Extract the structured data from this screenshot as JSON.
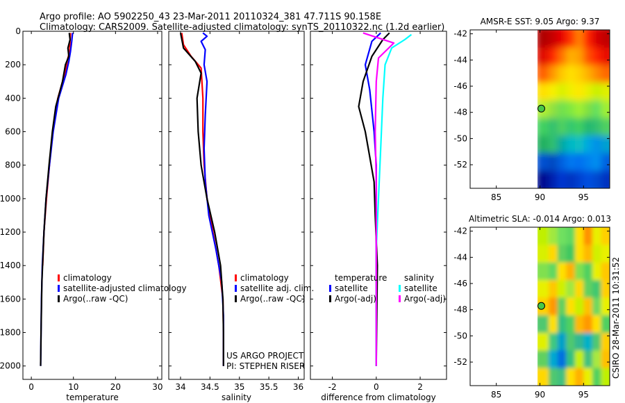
{
  "title_line1": "Argo profile: AO 5902250_43 23-Mar-2011 20110324_381 47.711S 90.158E",
  "title_line2": "Climatology: CARS2009. Satellite-adjusted climatology: synTS_20110322.nc (1.2d earlier)",
  "side_stamp": "CSIRO 28-Mar-2011 10:31:52",
  "colors": {
    "climatology": "#ff0000",
    "satellite": "#0000ff",
    "argo": "#000000",
    "sat_sal": "#00ffff",
    "argo_sal": "#ff00ff"
  },
  "chart_data": [
    {
      "type": "line",
      "id": "temperature-panel",
      "xlabel": "temperature",
      "xlim": [
        -2,
        31
      ],
      "ylim": [
        2080,
        0
      ],
      "xticks": [
        "0",
        "10",
        "20",
        "30"
      ],
      "yticks": [
        "0",
        "200",
        "400",
        "600",
        "800",
        "1000",
        "1200",
        "1400",
        "1600",
        "1800",
        "2000"
      ],
      "legend": [
        "climatology",
        "satellite-adjusted climatology",
        "Argo(..raw -QC)"
      ],
      "series": [
        {
          "name": "climatology",
          "color": "#ff0000",
          "points": [
            [
              9.3,
              10
            ],
            [
              9.2,
              60
            ],
            [
              9.1,
              120
            ],
            [
              8.6,
              170
            ],
            [
              8.0,
              250
            ],
            [
              6.3,
              400
            ],
            [
              5.1,
              600
            ],
            [
              4.3,
              800
            ],
            [
              3.6,
              1000
            ],
            [
              3.0,
              1200
            ],
            [
              2.7,
              1400
            ]
          ]
        },
        {
          "name": "satellite-adjusted climatology",
          "color": "#0000ff",
          "points": [
            [
              9.8,
              10
            ],
            [
              9.6,
              60
            ],
            [
              9.3,
              120
            ],
            [
              8.9,
              180
            ],
            [
              8.2,
              260
            ],
            [
              6.5,
              400
            ],
            [
              5.2,
              600
            ],
            [
              4.3,
              800
            ],
            [
              3.5,
              1000
            ],
            [
              3.0,
              1200
            ],
            [
              2.6,
              1400
            ],
            [
              2.4,
              1600
            ],
            [
              2.3,
              1800
            ],
            [
              2.2,
              2000
            ]
          ]
        },
        {
          "name": "Argo(..raw -QC)",
          "color": "#000000",
          "points": [
            [
              9.0,
              10
            ],
            [
              9.2,
              50
            ],
            [
              8.7,
              100
            ],
            [
              8.9,
              150
            ],
            [
              8.1,
              200
            ],
            [
              7.4,
              300
            ],
            [
              5.8,
              450
            ],
            [
              5.0,
              600
            ],
            [
              4.2,
              800
            ],
            [
              3.5,
              1000
            ],
            [
              3.0,
              1200
            ],
            [
              2.5,
              1500
            ],
            [
              2.3,
              1800
            ],
            [
              2.2,
              2000
            ]
          ]
        }
      ]
    },
    {
      "type": "line",
      "id": "salinity-panel",
      "xlabel": "salinity",
      "xlim": [
        33.8,
        36.1
      ],
      "ylim": [
        2080,
        0
      ],
      "xticks": [
        "34",
        "34.5",
        "35",
        "35.5",
        "36"
      ],
      "legend": [
        "climatology",
        "satellite adj. clim.",
        "Argo(..raw -QC)"
      ],
      "annotations": [
        "US ARGO PROJECT",
        "PI: STEPHEN RISER"
      ],
      "series": [
        {
          "name": "climatology",
          "color": "#ff0000",
          "points": [
            [
              34.02,
              10
            ],
            [
              34.05,
              80
            ],
            [
              34.18,
              150
            ],
            [
              34.35,
              220
            ],
            [
              34.38,
              400
            ],
            [
              34.38,
              600
            ],
            [
              34.4,
              800
            ],
            [
              34.45,
              1000
            ],
            [
              34.55,
              1200
            ],
            [
              34.65,
              1400
            ],
            [
              34.72,
              1600
            ],
            [
              34.73,
              1800
            ],
            [
              34.73,
              2000
            ]
          ]
        },
        {
          "name": "satellite adj. clim.",
          "color": "#0000ff",
          "points": [
            [
              34.38,
              10
            ],
            [
              34.45,
              30
            ],
            [
              34.35,
              60
            ],
            [
              34.42,
              110
            ],
            [
              34.4,
              200
            ],
            [
              34.45,
              300
            ],
            [
              34.42,
              500
            ],
            [
              34.4,
              700
            ],
            [
              34.42,
              900
            ],
            [
              34.48,
              1100
            ],
            [
              34.6,
              1300
            ],
            [
              34.7,
              1500
            ],
            [
              34.73,
              1700
            ],
            [
              34.73,
              2000
            ]
          ]
        },
        {
          "name": "Argo(..raw -QC)",
          "color": "#000000",
          "points": [
            [
              34.0,
              10
            ],
            [
              34.05,
              100
            ],
            [
              34.25,
              180
            ],
            [
              34.35,
              250
            ],
            [
              34.28,
              400
            ],
            [
              34.3,
              600
            ],
            [
              34.35,
              800
            ],
            [
              34.45,
              1000
            ],
            [
              34.58,
              1200
            ],
            [
              34.68,
              1400
            ],
            [
              34.72,
              1600
            ],
            [
              34.73,
              1800
            ],
            [
              34.73,
              2000
            ]
          ]
        }
      ]
    },
    {
      "type": "line",
      "id": "difference-panel",
      "xlabel": "difference from climatology",
      "xlim": [
        -3,
        3.2
      ],
      "ylim": [
        2080,
        0
      ],
      "xticks": [
        "-2",
        "0",
        "2"
      ],
      "legend_groups": [
        {
          "heading": "temperature",
          "items": [
            "satellite",
            "Argo(-adj)"
          ]
        },
        {
          "heading": "salinity",
          "items": [
            "satellite",
            "Argo(-adj)"
          ]
        }
      ],
      "series": [
        {
          "name": "temperature satellite",
          "color": "#0000ff",
          "points": [
            [
              0.2,
              10
            ],
            [
              -0.2,
              60
            ],
            [
              -0.5,
              200
            ],
            [
              -0.3,
              350
            ],
            [
              -0.1,
              600
            ],
            [
              0.0,
              800
            ],
            [
              0.0,
              1000
            ],
            [
              0.0,
              1500
            ],
            [
              0.0,
              2000
            ]
          ]
        },
        {
          "name": "temperature Argo(-adj)",
          "color": "#000000",
          "points": [
            [
              0.6,
              10
            ],
            [
              0.3,
              50
            ],
            [
              -0.2,
              150
            ],
            [
              -0.6,
              300
            ],
            [
              -0.8,
              450
            ],
            [
              -0.5,
              600
            ],
            [
              -0.3,
              750
            ],
            [
              -0.1,
              900
            ],
            [
              -0.05,
              1100
            ],
            [
              0.05,
              1400
            ],
            [
              0.0,
              2000
            ]
          ]
        },
        {
          "name": "salinity satellite",
          "color": "#00ffff",
          "points": [
            [
              1.6,
              20
            ],
            [
              1.3,
              50
            ],
            [
              0.7,
              100
            ],
            [
              0.4,
              200
            ],
            [
              0.3,
              400
            ],
            [
              0.2,
              700
            ],
            [
              0.1,
              1000
            ],
            [
              0.0,
              1300
            ],
            [
              0.0,
              2000
            ]
          ]
        },
        {
          "name": "salinity Argo(-adj)",
          "color": "#ff00ff",
          "points": [
            [
              -0.6,
              10
            ],
            [
              0.8,
              70
            ],
            [
              0.1,
              160
            ],
            [
              0.0,
              300
            ],
            [
              -0.05,
              600
            ],
            [
              0.0,
              900
            ],
            [
              0.0,
              1500
            ],
            [
              0.0,
              2000
            ]
          ]
        }
      ]
    },
    {
      "type": "heatmap",
      "id": "sst-map",
      "title": "AMSR-E SST: 9.05 Argo: 9.37",
      "xlim": [
        82,
        98
      ],
      "ylim": [
        -53.8,
        -41.7
      ],
      "xticks": [
        "85",
        "90",
        "95"
      ],
      "yticks": [
        "-42",
        "-44",
        "-46",
        "-48",
        "-50",
        "-52"
      ],
      "data_lon_range": [
        90,
        98
      ],
      "marker": [
        90.158,
        -47.711
      ]
    },
    {
      "type": "heatmap",
      "id": "sla-map",
      "title": "Altimetric SLA: -0.014 Argo: 0.013",
      "xlim": [
        82,
        98
      ],
      "ylim": [
        -53.8,
        -41.7
      ],
      "xticks": [
        "85",
        "90",
        "95"
      ],
      "yticks": [
        "-42",
        "-44",
        "-46",
        "-48",
        "-50",
        "-52"
      ],
      "data_lon_range": [
        90,
        98
      ],
      "marker": [
        90.158,
        -47.711
      ]
    }
  ]
}
